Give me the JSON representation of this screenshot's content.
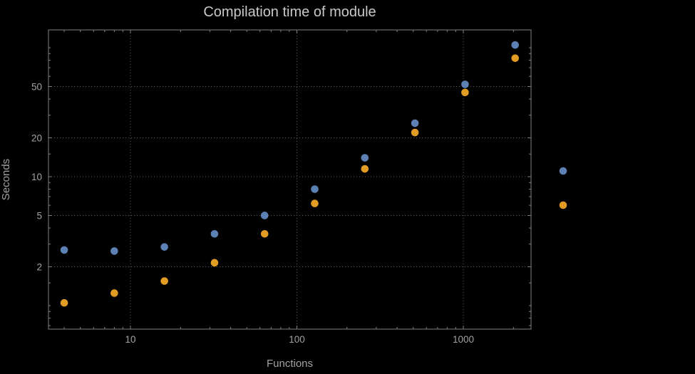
{
  "background_color": "#000000",
  "chart_data": {
    "type": "scatter",
    "title": "Compilation time of module",
    "xlabel": "Functions",
    "ylabel": "Seconds",
    "x_scale": "log",
    "y_scale": "log",
    "x_ticks": [
      "10",
      "100",
      "1000"
    ],
    "y_ticks": [
      "2",
      "5",
      "10",
      "20",
      "50"
    ],
    "x_tick_values": [
      10,
      100,
      1000
    ],
    "y_tick_values": [
      2,
      5,
      10,
      20,
      50
    ],
    "x_range": [
      3.2,
      2550
    ],
    "y_range": [
      0.66,
      137
    ],
    "grid": {
      "visible": true,
      "style": "dotted",
      "color": "#5e5e5e"
    },
    "frame_color": "#818181",
    "text_color": "#a2a2a2",
    "title_color": "#c6c8ca",
    "series": [
      {
        "name": "series-1-blue",
        "color": "#5e81b5",
        "x": [
          4,
          8,
          16,
          32,
          64,
          128,
          256,
          512,
          1024,
          2048
        ],
        "y": [
          2.7,
          2.65,
          2.85,
          3.6,
          5.0,
          8.0,
          14,
          26,
          52,
          105
        ]
      },
      {
        "name": "series-2-orange",
        "color": "#e19c24",
        "x": [
          4,
          8,
          16,
          32,
          64,
          128,
          256,
          512,
          1024,
          2048
        ],
        "y": [
          1.05,
          1.25,
          1.55,
          2.15,
          3.6,
          6.2,
          11.5,
          22,
          45,
          83
        ]
      }
    ],
    "legend": {
      "marker_colors": [
        "#5e81b5",
        "#e19c24"
      ],
      "labels": []
    }
  }
}
